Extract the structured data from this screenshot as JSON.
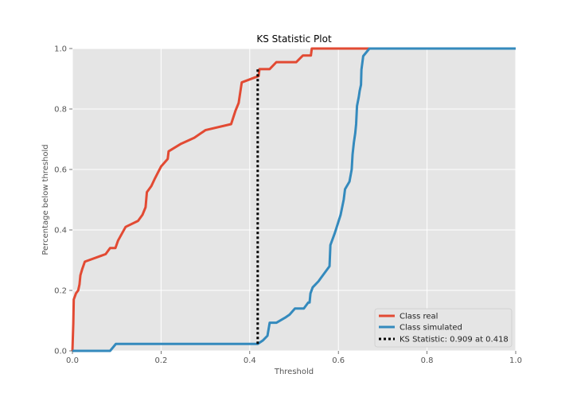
{
  "chart_data": {
    "type": "line",
    "title": "KS Statistic Plot",
    "xlabel": "Threshold",
    "ylabel": "Percentage below threshold",
    "xlim": [
      0.0,
      1.0
    ],
    "ylim": [
      0.0,
      1.0
    ],
    "x_ticks": [
      "0.0",
      "0.2",
      "0.4",
      "0.6",
      "0.8",
      "1.0"
    ],
    "y_ticks": [
      "0.0",
      "0.2",
      "0.4",
      "0.6",
      "0.8",
      "1.0"
    ],
    "grid": true,
    "background": "#e5e5e5",
    "legend_position": "lower-right",
    "series": [
      {
        "name": "Class real",
        "color": "#e24a33",
        "style": "solid",
        "points": [
          [
            0.0,
            0.0
          ],
          [
            0.002,
            0.09
          ],
          [
            0.003,
            0.17
          ],
          [
            0.008,
            0.19
          ],
          [
            0.013,
            0.2
          ],
          [
            0.016,
            0.22
          ],
          [
            0.018,
            0.25
          ],
          [
            0.022,
            0.27
          ],
          [
            0.028,
            0.295
          ],
          [
            0.075,
            0.32
          ],
          [
            0.085,
            0.34
          ],
          [
            0.097,
            0.34
          ],
          [
            0.103,
            0.365
          ],
          [
            0.12,
            0.41
          ],
          [
            0.148,
            0.43
          ],
          [
            0.158,
            0.45
          ],
          [
            0.165,
            0.475
          ],
          [
            0.168,
            0.525
          ],
          [
            0.178,
            0.545
          ],
          [
            0.186,
            0.57
          ],
          [
            0.2,
            0.61
          ],
          [
            0.215,
            0.635
          ],
          [
            0.217,
            0.66
          ],
          [
            0.245,
            0.685
          ],
          [
            0.275,
            0.705
          ],
          [
            0.3,
            0.73
          ],
          [
            0.358,
            0.75
          ],
          [
            0.368,
            0.795
          ],
          [
            0.375,
            0.82
          ],
          [
            0.382,
            0.888
          ],
          [
            0.42,
            0.909
          ],
          [
            0.422,
            0.932
          ],
          [
            0.445,
            0.932
          ],
          [
            0.46,
            0.955
          ],
          [
            0.505,
            0.955
          ],
          [
            0.52,
            0.977
          ],
          [
            0.538,
            0.977
          ],
          [
            0.54,
            1.0
          ],
          [
            1.0,
            1.0
          ]
        ]
      },
      {
        "name": "Class simulated",
        "color": "#348abd",
        "style": "solid",
        "points": [
          [
            0.0,
            0.0
          ],
          [
            0.085,
            0.0
          ],
          [
            0.098,
            0.023
          ],
          [
            0.418,
            0.023
          ],
          [
            0.43,
            0.035
          ],
          [
            0.44,
            0.05
          ],
          [
            0.445,
            0.093
          ],
          [
            0.46,
            0.093
          ],
          [
            0.48,
            0.11
          ],
          [
            0.49,
            0.12
          ],
          [
            0.502,
            0.14
          ],
          [
            0.522,
            0.14
          ],
          [
            0.532,
            0.16
          ],
          [
            0.535,
            0.16
          ],
          [
            0.537,
            0.19
          ],
          [
            0.542,
            0.21
          ],
          [
            0.555,
            0.23
          ],
          [
            0.56,
            0.24
          ],
          [
            0.58,
            0.28
          ],
          [
            0.582,
            0.35
          ],
          [
            0.592,
            0.39
          ],
          [
            0.605,
            0.45
          ],
          [
            0.612,
            0.5
          ],
          [
            0.615,
            0.535
          ],
          [
            0.625,
            0.56
          ],
          [
            0.63,
            0.6
          ],
          [
            0.632,
            0.65
          ],
          [
            0.635,
            0.69
          ],
          [
            0.638,
            0.72
          ],
          [
            0.64,
            0.75
          ],
          [
            0.642,
            0.81
          ],
          [
            0.646,
            0.84
          ],
          [
            0.648,
            0.86
          ],
          [
            0.651,
            0.88
          ],
          [
            0.652,
            0.93
          ],
          [
            0.656,
            0.975
          ],
          [
            0.67,
            1.0
          ],
          [
            1.0,
            1.0
          ]
        ]
      }
    ],
    "ks_line": {
      "label": "KS Statistic: 0.909 at 0.418",
      "x": 0.418,
      "y_from": 0.023,
      "y_to": 0.932,
      "color": "#000000",
      "style": "dotted"
    }
  }
}
